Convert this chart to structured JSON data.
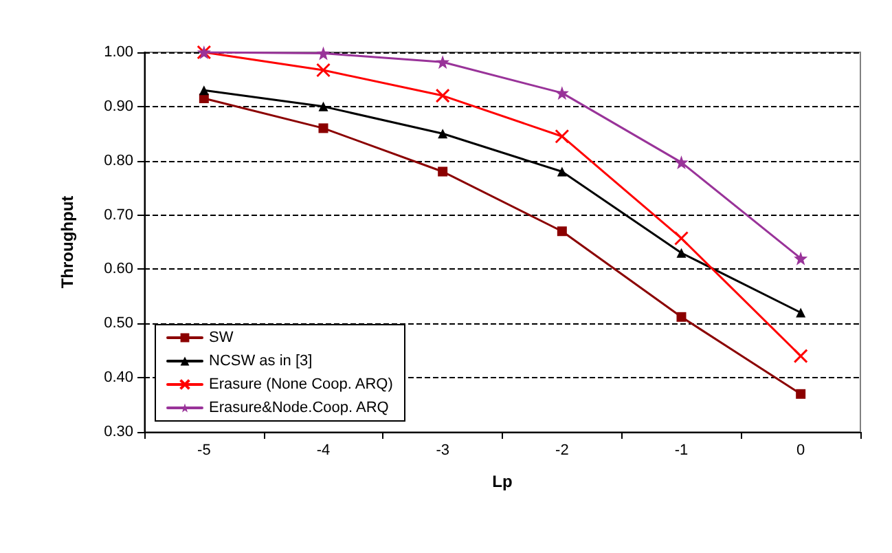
{
  "chart_data": {
    "type": "line",
    "xlabel": "Lp",
    "ylabel": "Throughput",
    "categories": [
      "-5",
      "-4",
      "-3",
      "-2",
      "-1",
      "0"
    ],
    "series": [
      {
        "name": "SW",
        "color": "#8b0000",
        "marker": "square",
        "values": [
          0.915,
          0.86,
          0.78,
          0.67,
          0.512,
          0.37
        ]
      },
      {
        "name": "NCSW as in [3]",
        "color": "#000000",
        "marker": "triangle",
        "values": [
          0.93,
          0.9,
          0.85,
          0.78,
          0.63,
          0.52
        ]
      },
      {
        "name": "Erasure (None Coop. ARQ)",
        "color": "#ff0000",
        "marker": "cross",
        "values": [
          1.0,
          0.967,
          0.92,
          0.845,
          0.657,
          0.44
        ]
      },
      {
        "name": "Erasure&Node.Coop. ARQ",
        "color": "#993399",
        "marker": "star",
        "values": [
          1.0,
          0.998,
          0.982,
          0.925,
          0.797,
          0.62
        ]
      }
    ],
    "ylim": [
      0.3,
      1.0
    ],
    "yticks": [
      {
        "value": 0.3,
        "label": "0.30"
      },
      {
        "value": 0.4,
        "label": "0.40"
      },
      {
        "value": 0.5,
        "label": "0.50"
      },
      {
        "value": 0.6,
        "label": "0.60"
      },
      {
        "value": 0.7,
        "label": "0.70"
      },
      {
        "value": 0.8,
        "label": "0.80"
      },
      {
        "value": 0.9,
        "label": "0.90"
      },
      {
        "value": 1.0,
        "label": "1.00"
      }
    ],
    "grid": "y",
    "legend": "bottom left"
  }
}
